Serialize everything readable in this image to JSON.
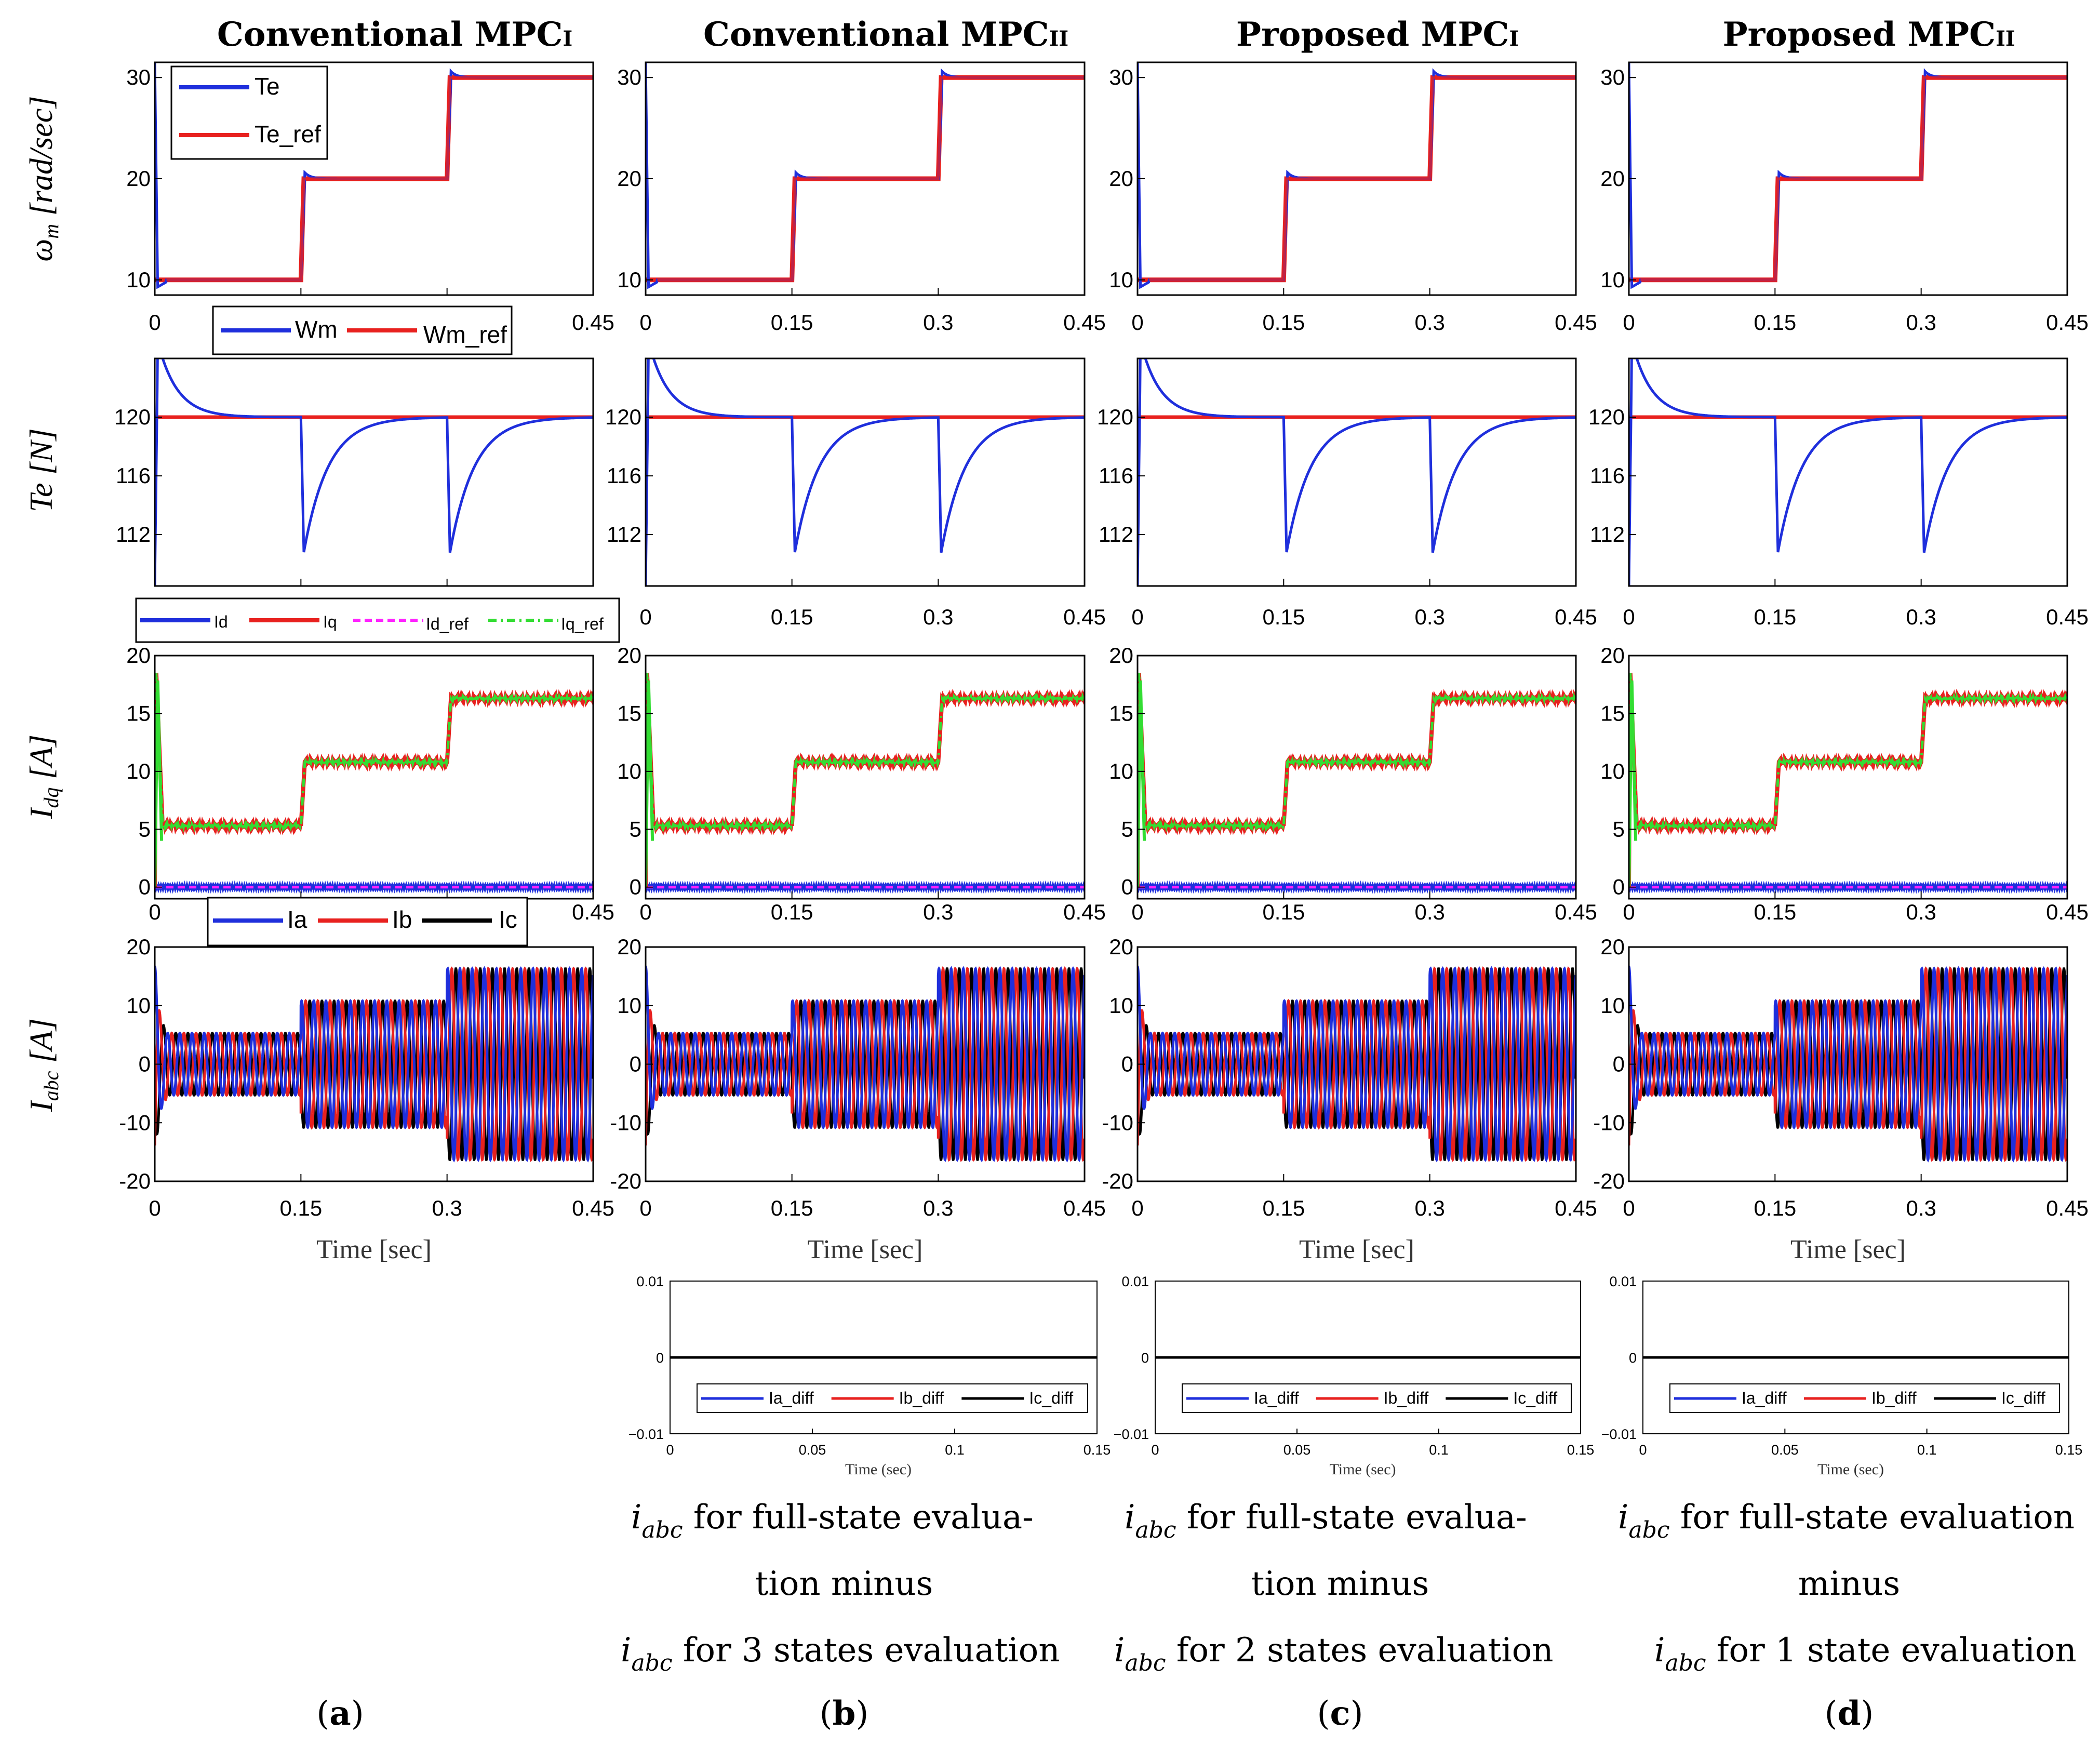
{
  "columns": [
    {
      "id": "a",
      "title": "Conventional MPC",
      "sub": "I",
      "panel": "a"
    },
    {
      "id": "b",
      "title": "Conventional MPC",
      "sub": "II",
      "panel": "b"
    },
    {
      "id": "c",
      "title": "Proposed MPC",
      "sub": "I",
      "panel": "c"
    },
    {
      "id": "d",
      "title": "Proposed MPC",
      "sub": "II",
      "panel": "d"
    }
  ],
  "row_labels": {
    "speed": {
      "main": "ω",
      "sub": "m",
      "rest": " [rad/sec]"
    },
    "torque": {
      "main": "Te [N]",
      "sub": "",
      "rest": ""
    },
    "idq": {
      "main": "I",
      "sub": "dq",
      "rest": " [A]"
    },
    "iabc": {
      "main": "I",
      "sub": "abc",
      "rest": " [A]"
    }
  },
  "x_axis_label": "Time [sec]",
  "diff_x_axis_label": "Time (sec)",
  "panel_labels": [
    "a",
    "b",
    "c",
    "d"
  ],
  "captions": {
    "b": {
      "var": "i",
      "sub": "abc",
      "l1": "  for full-state evalua-",
      "l2": "tion minus",
      "l3": "  for 3 states evaluation"
    },
    "c": {
      "var": "i",
      "sub": "abc",
      "l1": "  for full-state evalua-",
      "l2": "tion minus",
      "l3": "  for 2 states evaluation"
    },
    "d": {
      "var": "i",
      "sub": "abc",
      "l1": "  for full-state evaluation",
      "l2": "minus",
      "l3": "  for 1 state evaluation"
    }
  },
  "legends": {
    "speed": [
      "Te",
      "Te_ref"
    ],
    "torque": [
      "Wm",
      "Wm_ref"
    ],
    "idq": [
      "Id",
      "Iq",
      "Id_ref",
      "Iq_ref"
    ],
    "iabc": [
      "Ia",
      "Ib",
      "Ic"
    ],
    "diff": [
      "Ia_diff",
      "Ib_diff",
      "Ic_diff"
    ]
  },
  "colors": {
    "blue": "#1f2fdc",
    "red": "#e8211f",
    "black": "#000000",
    "magenta": "#ff22ff",
    "green": "#33dd33"
  },
  "chart_data": [
    {
      "type": "line",
      "name": "speed",
      "ylabel": "ωm [rad/sec]",
      "xlim": [
        0,
        0.45
      ],
      "ylim": [
        8.5,
        31.5
      ],
      "xticks": [
        0,
        0.15,
        0.3,
        0.45
      ],
      "yticks": [
        10,
        20,
        30
      ],
      "series": [
        {
          "name": "Te_ref",
          "color": "red",
          "steps": [
            [
              0,
              10
            ],
            [
              0.15,
              20
            ],
            [
              0.3,
              30
            ]
          ]
        },
        {
          "name": "Te",
          "color": "blue",
          "steps": [
            [
              0,
              10
            ],
            [
              0.15,
              20
            ],
            [
              0.3,
              30
            ]
          ],
          "overshoot": 0.6,
          "initial_spike": 31.5
        }
      ]
    },
    {
      "type": "line",
      "name": "torque",
      "ylabel": "Te [N]",
      "xlim": [
        0,
        0.45
      ],
      "ylim": [
        108.5,
        124
      ],
      "xticks": [
        0,
        0.15,
        0.3,
        0.45
      ],
      "yticks": [
        112,
        116,
        120
      ],
      "series": [
        {
          "name": "Wm_ref",
          "color": "red",
          "value": 120
        },
        {
          "name": "Wm",
          "color": "blue",
          "dips": [
            [
              0.15,
              110.8
            ],
            [
              0.3,
              110.8
            ]
          ],
          "initial_decay_from": 126
        }
      ]
    },
    {
      "type": "line",
      "name": "idq",
      "ylabel": "Idq [A]",
      "xlim": [
        0,
        0.45
      ],
      "ylim": [
        -1,
        20
      ],
      "xticks": [
        0,
        0.15,
        0.3,
        0.45
      ],
      "yticks": [
        0,
        5,
        10,
        15,
        20
      ],
      "series": [
        {
          "name": "Id",
          "color": "blue",
          "value": 0
        },
        {
          "name": "Id_ref",
          "color": "magenta",
          "value": 0
        },
        {
          "name": "Iq",
          "color": "red",
          "steps": [
            [
              0,
              5.3
            ],
            [
              0.15,
              10.8
            ],
            [
              0.3,
              16.3
            ]
          ],
          "initial_peak": 18.5
        },
        {
          "name": "Iq_ref",
          "color": "green",
          "steps": [
            [
              0,
              5.3
            ],
            [
              0.15,
              10.8
            ],
            [
              0.3,
              16.3
            ]
          ]
        }
      ]
    },
    {
      "type": "line",
      "name": "iabc",
      "ylabel": "Iabc [A]",
      "xlim": [
        0,
        0.45
      ],
      "ylim": [
        -20,
        20
      ],
      "xticks": [
        0,
        0.15,
        0.3,
        0.45
      ],
      "yticks": [
        -20,
        -10,
        0,
        10,
        20
      ],
      "series": [
        {
          "name": "Ia",
          "color": "blue",
          "amplitudes": [
            [
              0,
              5.3
            ],
            [
              0.15,
              10.8
            ],
            [
              0.3,
              16.3
            ]
          ]
        },
        {
          "name": "Ib",
          "color": "red",
          "amplitudes": [
            [
              0,
              5.3
            ],
            [
              0.15,
              10.8
            ],
            [
              0.3,
              16.3
            ]
          ]
        },
        {
          "name": "Ic",
          "color": "black",
          "amplitudes": [
            [
              0,
              5.3
            ],
            [
              0.15,
              10.8
            ],
            [
              0.3,
              16.3
            ]
          ]
        }
      ]
    },
    {
      "type": "line",
      "name": "diff",
      "xlim": [
        0,
        0.15
      ],
      "ylim": [
        -0.01,
        0.01
      ],
      "xticks": [
        0,
        0.05,
        0.1,
        0.15
      ],
      "yticks": [
        -0.01,
        0,
        0.01
      ],
      "series": [
        {
          "name": "Ia_diff",
          "color": "blue",
          "value": 0
        },
        {
          "name": "Ib_diff",
          "color": "red",
          "value": 0
        },
        {
          "name": "Ic_diff",
          "color": "black",
          "value": 0
        }
      ]
    }
  ]
}
